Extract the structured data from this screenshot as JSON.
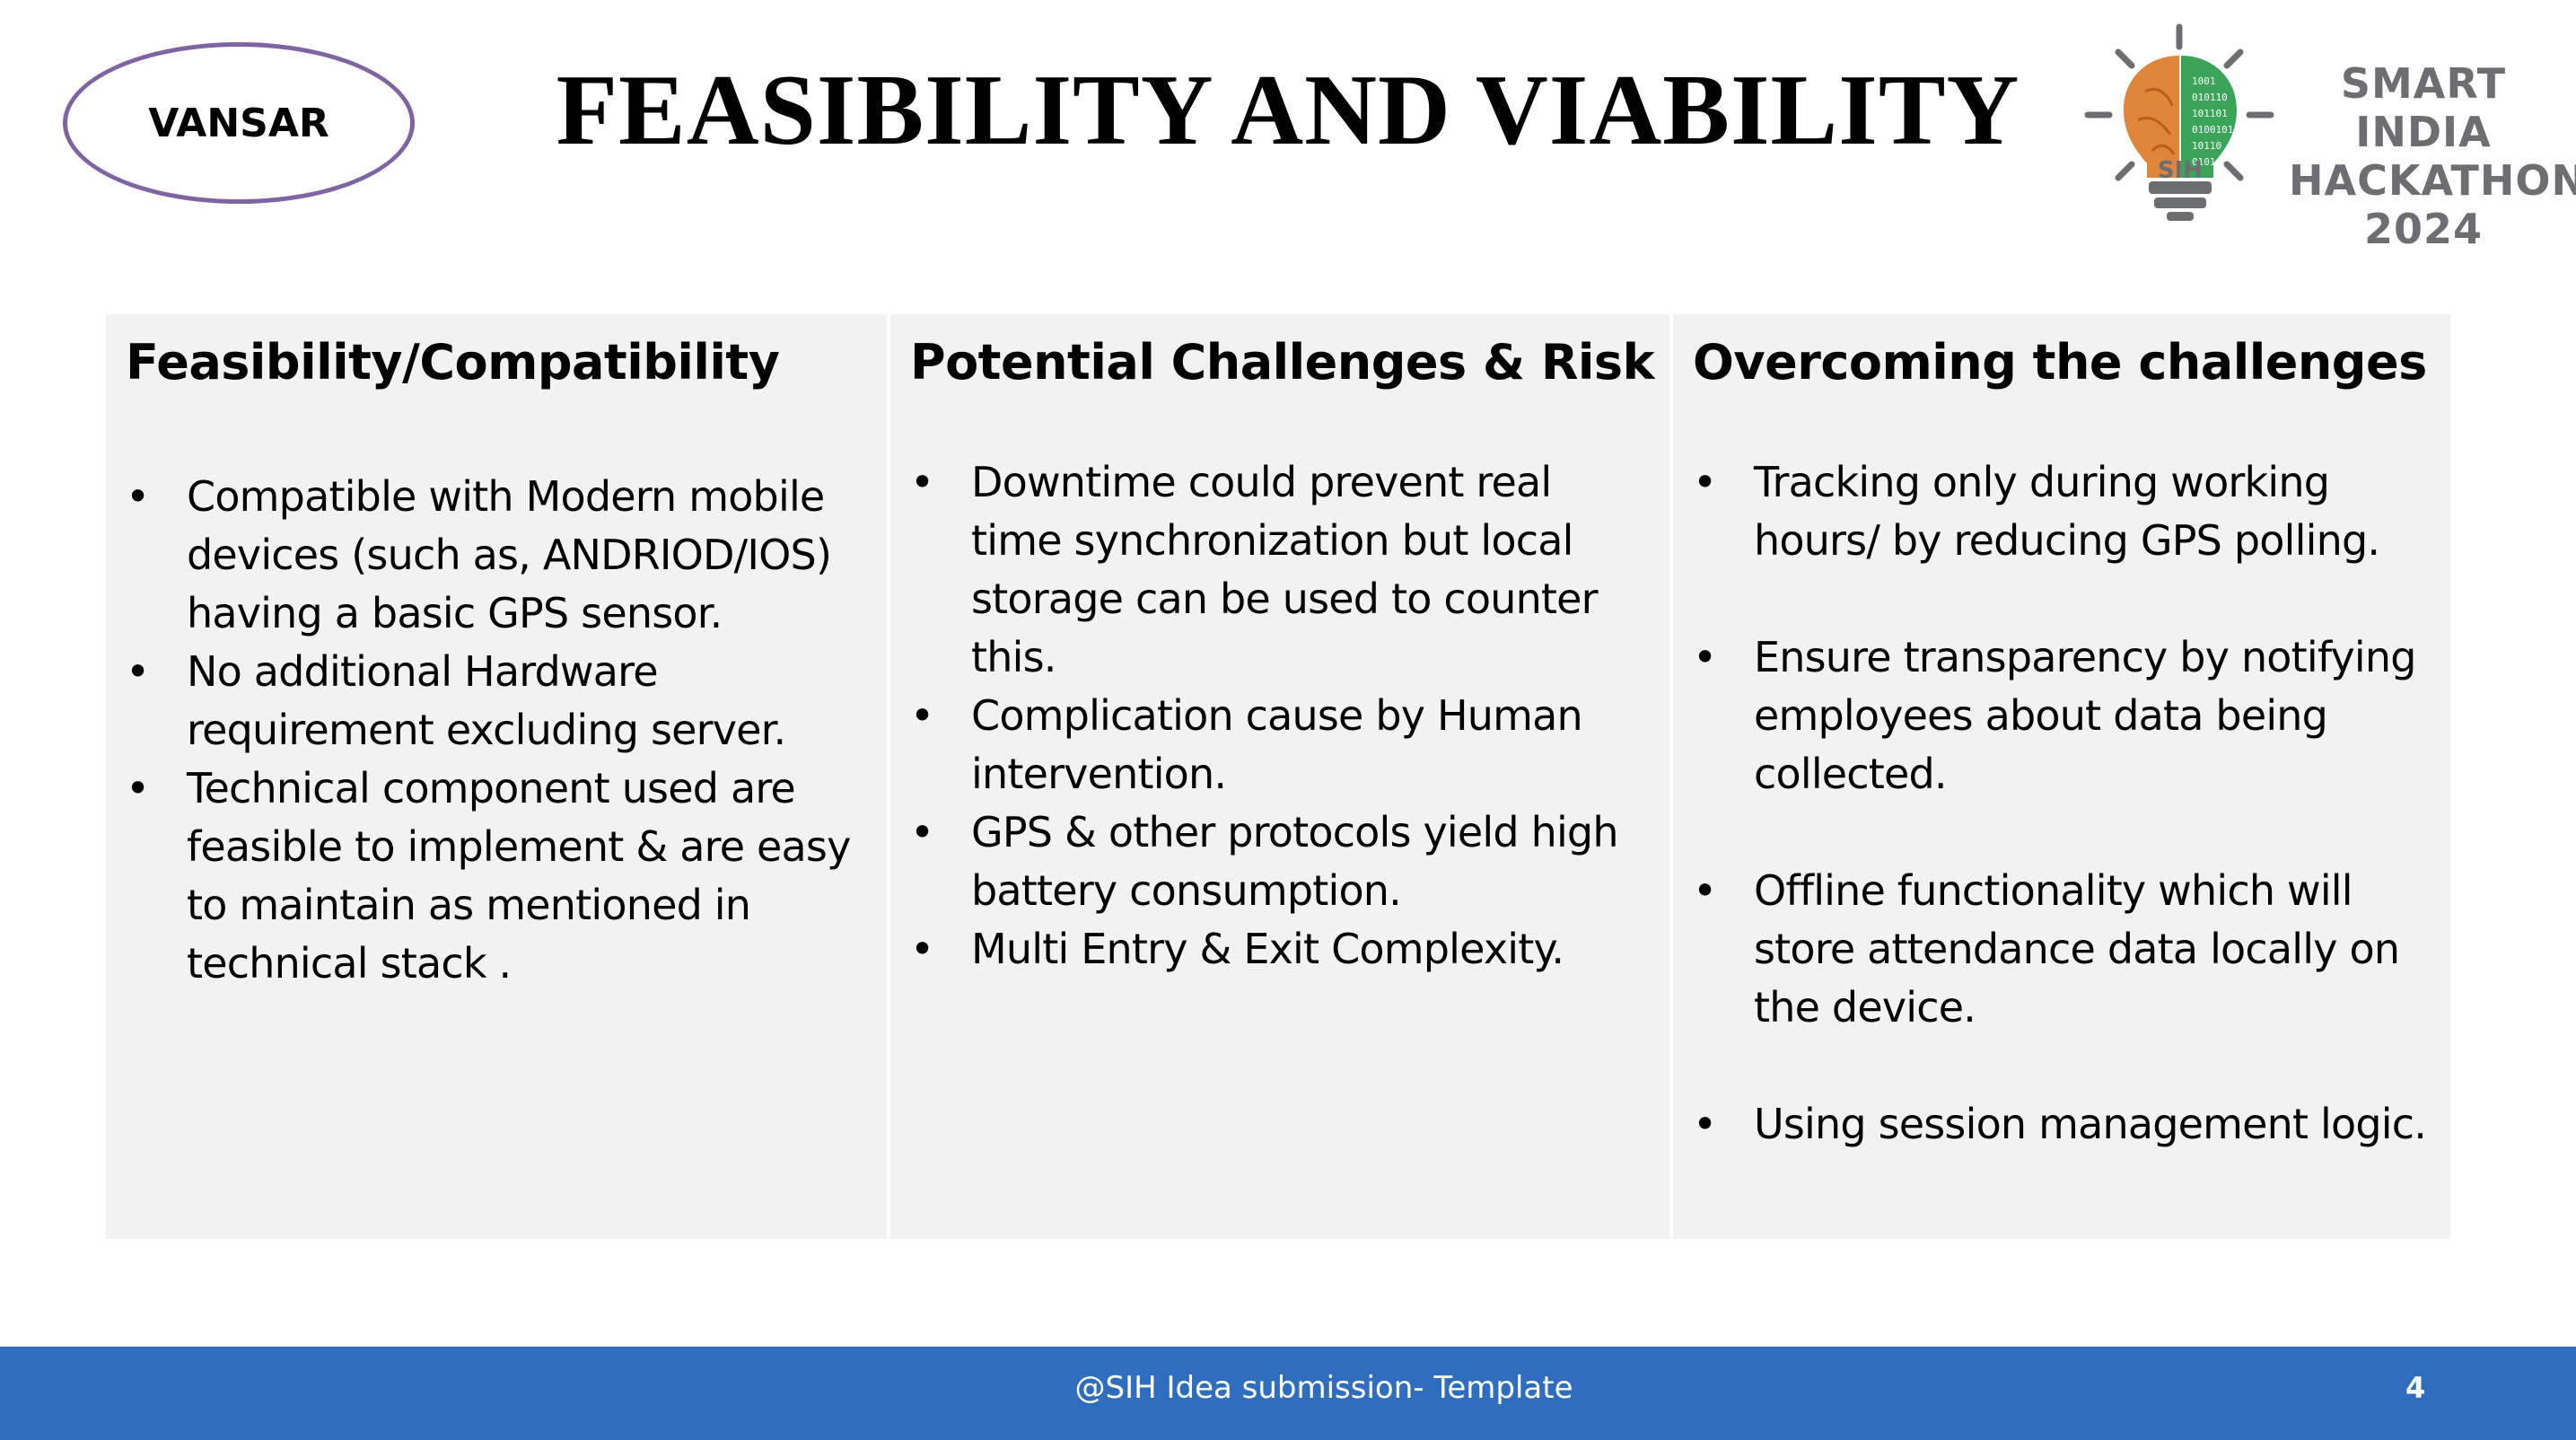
{
  "header": {
    "team_name": "VANSAR",
    "title": "FEASIBILITY AND VIABILITY",
    "logo": {
      "text_line1": "SMART INDIA",
      "text_line2": "HACKATHON",
      "text_line3": "2024",
      "bulb_label": "SIH",
      "icon": "lightbulb-brain-icon",
      "colors": {
        "orange": "#e0863b",
        "green": "#3aa558",
        "gray": "#6d6e71"
      }
    }
  },
  "columns": [
    {
      "heading": "Feasibility/Compatibility",
      "bullets": [
        "Compatible with Modern mobile devices (such as, ANDRIOD/IOS) having a basic GPS sensor.",
        "No additional Hardware requirement excluding server.",
        "Technical component used are feasible to implement & are easy to maintain as mentioned in technical stack ."
      ]
    },
    {
      "heading": "Potential Challenges & Risk",
      "bullets": [
        "Downtime could prevent real time synchronization but local storage can be used to counter this.",
        "Complication cause by Human intervention.",
        "GPS & other protocols yield high battery consumption.",
        "Multi Entry & Exit Complexity."
      ]
    },
    {
      "heading": "Overcoming the challenges",
      "bullets": [
        "Tracking only during working hours/ by reducing GPS polling.",
        "Ensure transparency by notifying employees about data being collected.",
        "Offline functionality which will store attendance data locally on the device.",
        "Using session management logic."
      ]
    }
  ],
  "footer": {
    "text": "@SIH Idea submission- Template",
    "page_number": "4"
  },
  "colors": {
    "badge_border": "#8064a2",
    "cell_background": "#f2f2f2",
    "footer_background": "#2f6ebf"
  }
}
